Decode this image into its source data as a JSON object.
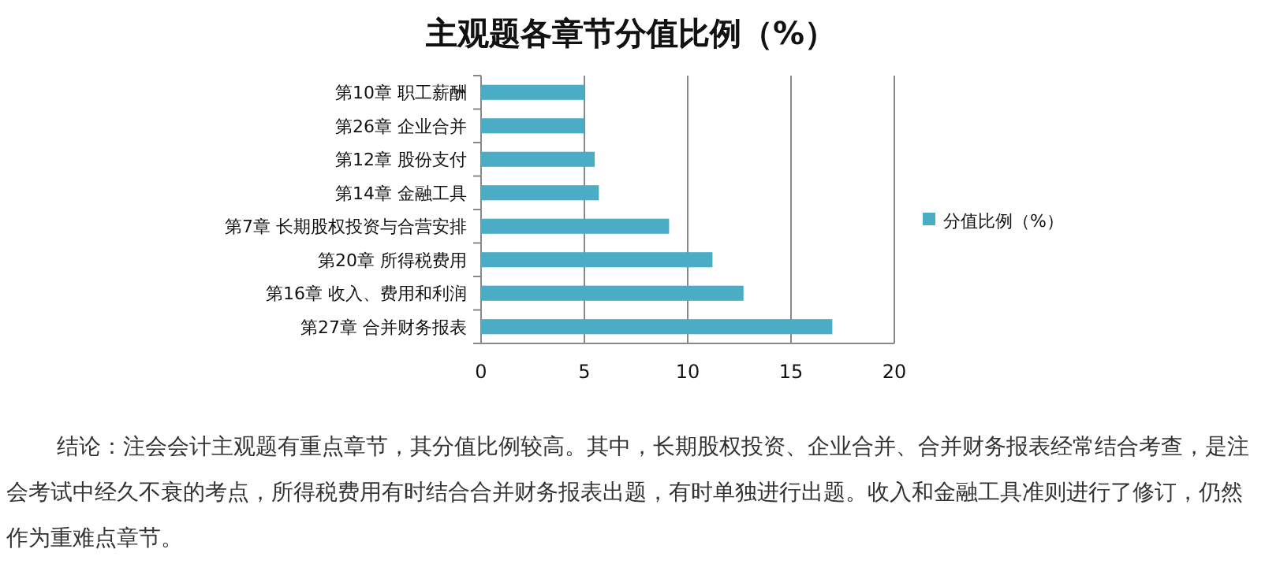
{
  "chart_data": {
    "type": "bar",
    "orientation": "horizontal",
    "title": "主观题各章节分值比例（%）",
    "categories": [
      "第10章 职工薪酬",
      "第26章 企业合并",
      "第12章 股份支付",
      "第14章 金融工具",
      "第7章 长期股权投资与合营安排",
      "第20章 所得税费用",
      "第16章 收入、费用和利润",
      "第27章 合并财务报表"
    ],
    "series": [
      {
        "name": "分值比例（%）",
        "color": "#4bacc6",
        "values": [
          5,
          5,
          5.5,
          5.7,
          9.1,
          11.2,
          12.7,
          17
        ]
      }
    ],
    "xlim": [
      0,
      20
    ],
    "xticks": [
      0,
      5,
      10,
      15,
      20
    ],
    "grid": "x",
    "legend": "right",
    "annotations": [
      "结论：注会会计主观题有重点章节，其分值比例较高。其中，长期股权投资、企业合并、合并财务报表经常结合考查，是注会考试中经久不衰的考点，所得税费用有时结合合并财务报表出题，有时单独进行出题。收入和金融工具准则进行了修订，仍然作为重难点章节。"
    ]
  }
}
